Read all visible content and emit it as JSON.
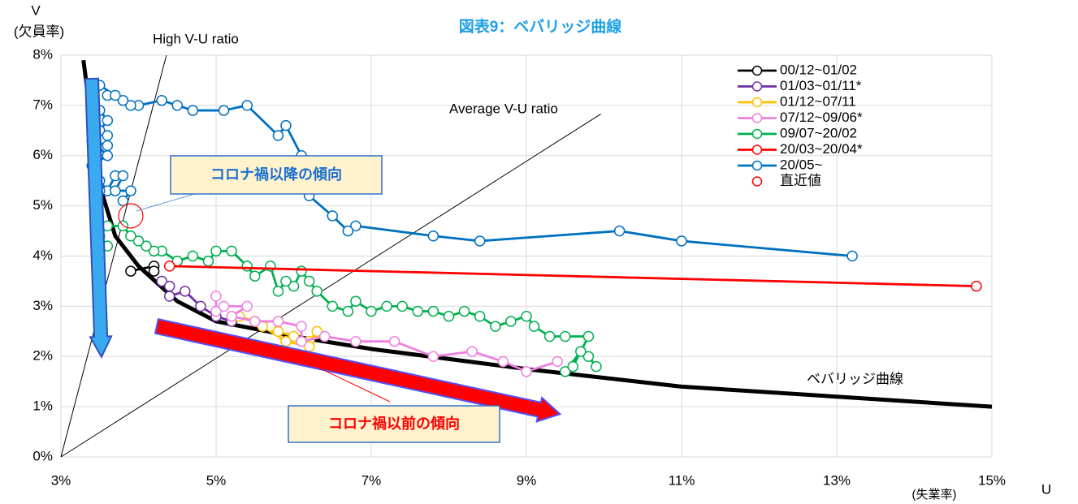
{
  "chart_data": {
    "type": "line",
    "title": "図表9：ベバリッジ曲線",
    "y_label": "V",
    "y_label_sub": "(欠員率)",
    "x_label": "U",
    "x_label_sub": "(失業率)",
    "xlim": [
      3,
      15
    ],
    "ylim": [
      0,
      8
    ],
    "xticks": [
      {
        "value": 3,
        "label": "3%"
      },
      {
        "value": 5,
        "label": "5%"
      },
      {
        "value": 7,
        "label": "7%"
      },
      {
        "value": 9,
        "label": "9%"
      },
      {
        "value": 11,
        "label": "11%"
      },
      {
        "value": 13,
        "label": "13%"
      },
      {
        "value": 15,
        "label": "15%"
      }
    ],
    "yticks": [
      {
        "value": 0,
        "label": "0%"
      },
      {
        "value": 1,
        "label": "1%"
      },
      {
        "value": 2,
        "label": "2%"
      },
      {
        "value": 3,
        "label": "3%"
      },
      {
        "value": 4,
        "label": "4%"
      },
      {
        "value": 5,
        "label": "5%"
      },
      {
        "value": 6,
        "label": "6%"
      },
      {
        "value": 7,
        "label": "7%"
      },
      {
        "value": 8,
        "label": "8%"
      }
    ],
    "grid": true,
    "legend": "top-right",
    "series": [
      {
        "name": "00/12~01/02",
        "color": "#000000",
        "x": [
          3.9,
          4.2,
          4.2
        ],
        "values": [
          3.7,
          3.8,
          3.7
        ]
      },
      {
        "name": "01/03~01/11*",
        "color": "#7030a0",
        "x": [
          4.3,
          4.4,
          4.4,
          4.6,
          4.8,
          5.0,
          5.2
        ],
        "values": [
          3.5,
          3.4,
          3.2,
          3.3,
          3.0,
          2.8,
          2.7
        ]
      },
      {
        "name": "01/12~07/11",
        "color": "#ffc000",
        "x": [
          5.3,
          5.5,
          5.7,
          5.8,
          6.0,
          6.2,
          6.3,
          6.2,
          5.9,
          5.6
        ],
        "values": [
          2.8,
          2.7,
          2.6,
          2.5,
          2.4,
          2.3,
          2.5,
          2.2,
          2.3,
          2.6
        ]
      },
      {
        "name": "07/12~09/06*",
        "color": "#ee7fe0",
        "x": [
          5.0,
          5.0,
          5.1,
          5.4,
          5.2,
          5.5,
          5.8,
          6.1,
          6.1,
          6.4,
          6.8,
          7.3,
          7.8,
          8.3,
          8.7,
          9.0,
          9.4
        ],
        "values": [
          3.2,
          2.9,
          3.0,
          3.0,
          2.8,
          2.7,
          2.7,
          2.6,
          2.3,
          2.4,
          2.3,
          2.3,
          2.0,
          2.1,
          1.9,
          1.7,
          1.9
        ]
      },
      {
        "name": "09/07~20/02",
        "color": "#00b050",
        "x": [
          9.9,
          9.8,
          9.7,
          9.5,
          9.6,
          9.8,
          9.5,
          9.3,
          9.1,
          9.0,
          8.8,
          8.6,
          8.4,
          8.2,
          8.0,
          7.8,
          7.6,
          7.4,
          7.2,
          7.0,
          6.8,
          6.7,
          6.5,
          6.3,
          6.2,
          6.1,
          6.0,
          5.9,
          5.8,
          5.7,
          5.5,
          5.4,
          5.2,
          5.0,
          4.9,
          4.7,
          4.5,
          4.3,
          4.2,
          4.1,
          4.0,
          3.9,
          3.8,
          3.6,
          3.5,
          3.6
        ],
        "values": [
          1.8,
          2.0,
          2.1,
          1.7,
          1.8,
          2.4,
          2.4,
          2.4,
          2.6,
          2.8,
          2.7,
          2.6,
          2.8,
          2.9,
          2.8,
          2.9,
          2.9,
          3.0,
          3.0,
          2.9,
          3.1,
          2.9,
          3.0,
          3.3,
          3.5,
          3.7,
          3.4,
          3.5,
          3.3,
          3.8,
          3.6,
          3.8,
          4.1,
          4.1,
          3.9,
          4.0,
          3.9,
          4.1,
          4.1,
          4.2,
          4.3,
          4.4,
          4.6,
          4.6,
          4.4,
          4.2
        ]
      },
      {
        "name": "20/03~20/04*",
        "color": "#ff0000",
        "x": [
          4.4,
          14.8
        ],
        "values": [
          3.8,
          3.4
        ]
      },
      {
        "name": "20/05~",
        "color": "#0070c0",
        "x": [
          13.2,
          11.0,
          10.2,
          8.4,
          7.8,
          6.8,
          6.7,
          6.5,
          6.2,
          6.1,
          5.9,
          5.8,
          5.4,
          5.1,
          4.7,
          4.5,
          4.3,
          4.0,
          3.9,
          3.8,
          3.6,
          3.7,
          3.5,
          3.4,
          3.5,
          3.6,
          3.5,
          3.6,
          3.6,
          3.4,
          3.6,
          3.4,
          3.5,
          3.6,
          3.7,
          3.8,
          3.7,
          3.5,
          3.9,
          3.8
        ],
        "values": [
          4.0,
          4.3,
          4.5,
          4.3,
          4.4,
          4.6,
          4.5,
          4.8,
          5.2,
          6.0,
          6.6,
          6.4,
          7.0,
          6.9,
          6.9,
          7.0,
          7.1,
          7.0,
          7.0,
          7.1,
          7.2,
          7.2,
          7.4,
          7.0,
          6.9,
          6.7,
          6.5,
          6.4,
          6.2,
          6.3,
          6.0,
          5.8,
          5.5,
          5.3,
          5.6,
          5.6,
          5.3,
          5.3,
          5.3,
          5.1
        ]
      },
      {
        "name": "直近値",
        "color": "#ff0000",
        "line": false,
        "x": [
          3.9
        ],
        "values": [
          4.8
        ]
      }
    ],
    "curve": {
      "label": "ベバリッジ曲線",
      "color": "#000000",
      "x": [
        3.29,
        3.4,
        3.5,
        3.7,
        4.0,
        4.5,
        5.0,
        6.0,
        7.0,
        9.0,
        11.0,
        13.0,
        15.0
      ],
      "values": [
        7.9,
        6.6,
        5.4,
        4.4,
        3.8,
        3.1,
        2.7,
        2.4,
        2.15,
        1.75,
        1.4,
        1.2,
        1.0
      ]
    },
    "ratio_lines": [
      {
        "label": "High V-U ratio",
        "x": [
          3,
          4.36
        ],
        "values": [
          0,
          8
        ]
      },
      {
        "label": "Average V-U ratio",
        "x": [
          3,
          9.96
        ],
        "values": [
          0,
          6.83
        ]
      }
    ],
    "callouts": {
      "after": "コロナ禍以降の傾向",
      "before": "コロナ禍以前の傾向"
    }
  }
}
